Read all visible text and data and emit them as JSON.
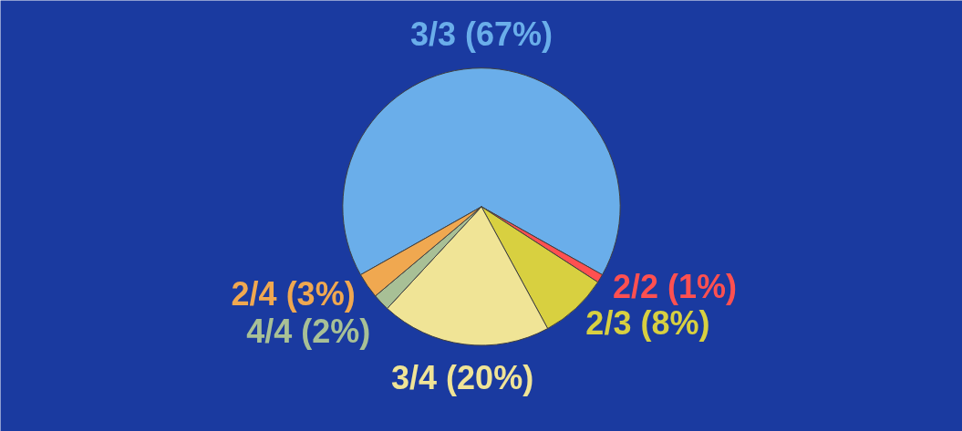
{
  "chart_data": {
    "type": "pie",
    "categories": [
      "3/3",
      "2/2",
      "2/3",
      "3/4",
      "4/4",
      "2/4"
    ],
    "values": [
      67,
      1,
      8,
      20,
      2,
      3
    ],
    "colors": [
      "#6aaeea",
      "#ff5050",
      "#d8d040",
      "#f0e496",
      "#a8c096",
      "#f0a850"
    ],
    "value_labels": [
      "(67%)",
      "(1%)",
      "(8%)",
      "(20%)",
      "(2%)",
      "(3%)"
    ]
  }
}
